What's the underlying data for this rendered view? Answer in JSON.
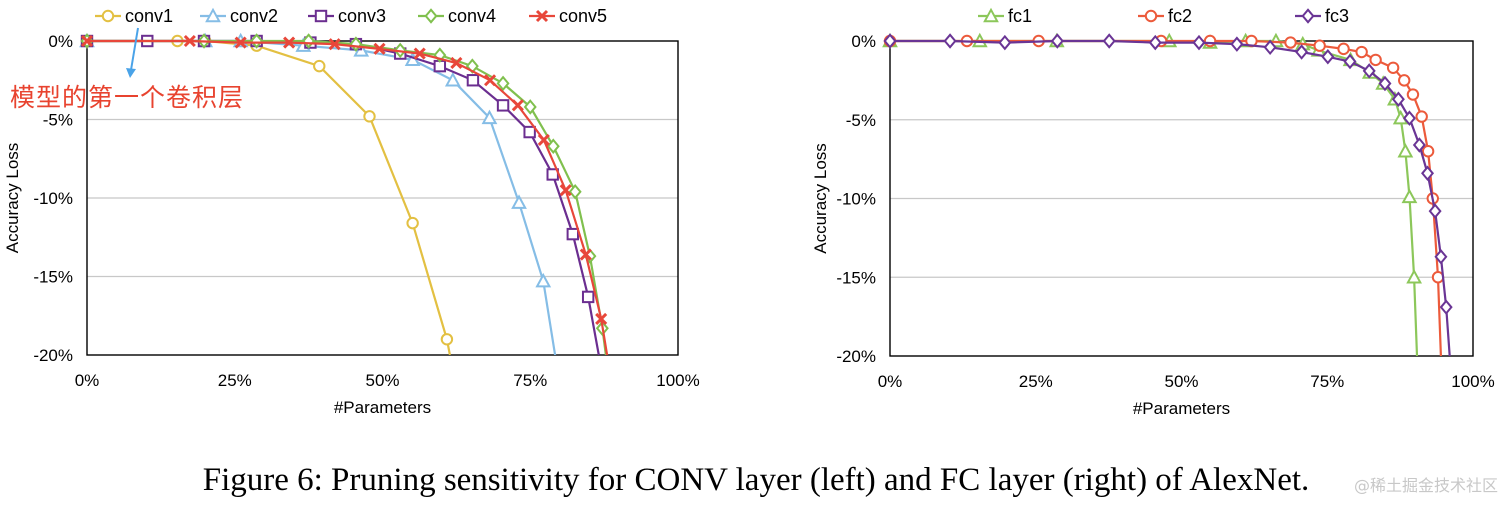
{
  "chart_data": [
    {
      "type": "line",
      "xlabel": "#Parameters",
      "ylabel": "Accuracy Loss",
      "xlim": [
        0,
        100
      ],
      "ylim": [
        -20,
        0
      ],
      "x_ticks": [
        "0%",
        "25%",
        "50%",
        "75%",
        "100%"
      ],
      "y_ticks": [
        "0%",
        "-5%",
        "-10%",
        "-15%",
        "-20%"
      ],
      "grid": "horizontal",
      "legend": "top",
      "annotation": "模型的第一个卷积层",
      "series": [
        {
          "name": "conv1",
          "color": "#e3c042",
          "marker": "circle",
          "points": [
            [
              0,
              0
            ],
            [
              15.3,
              0
            ],
            [
              20,
              0
            ],
            [
              28.7,
              -0.3
            ],
            [
              39.3,
              -1.6
            ],
            [
              47.8,
              -4.8
            ],
            [
              55.1,
              -11.6
            ],
            [
              60.9,
              -19.0
            ],
            [
              61.4,
              -20
            ]
          ]
        },
        {
          "name": "conv2",
          "color": "#85bde6",
          "marker": "triangle",
          "points": [
            [
              0,
              0
            ],
            [
              20,
              0
            ],
            [
              26,
              0
            ],
            [
              36.6,
              -0.3
            ],
            [
              46.4,
              -0.6
            ],
            [
              55.1,
              -1.2
            ],
            [
              61.9,
              -2.5
            ],
            [
              68.1,
              -4.9
            ],
            [
              73.1,
              -10.3
            ],
            [
              77.2,
              -15.3
            ],
            [
              79.2,
              -20
            ]
          ]
        },
        {
          "name": "conv3",
          "color": "#6b2e90",
          "marker": "square",
          "points": [
            [
              0,
              0
            ],
            [
              10.2,
              0
            ],
            [
              19.8,
              0
            ],
            [
              28.7,
              0
            ],
            [
              37.8,
              -0.1
            ],
            [
              45.5,
              -0.2
            ],
            [
              53,
              -0.8
            ],
            [
              59.7,
              -1.6
            ],
            [
              65.3,
              -2.5
            ],
            [
              70.4,
              -4.1
            ],
            [
              74.9,
              -5.8
            ],
            [
              78.8,
              -8.5
            ],
            [
              82.2,
              -12.3
            ],
            [
              84.8,
              -16.3
            ],
            [
              86.6,
              -20
            ]
          ]
        },
        {
          "name": "conv4",
          "color": "#80c04e",
          "marker": "diamond",
          "points": [
            [
              0,
              0
            ],
            [
              19.8,
              0
            ],
            [
              28.7,
              0
            ],
            [
              37.5,
              0
            ],
            [
              45.5,
              -0.2
            ],
            [
              53,
              -0.6
            ],
            [
              59.7,
              -0.9
            ],
            [
              65.2,
              -1.6
            ],
            [
              70.4,
              -2.7
            ],
            [
              75,
              -4.2
            ],
            [
              78.9,
              -6.7
            ],
            [
              82.6,
              -9.6
            ],
            [
              85.1,
              -13.7
            ],
            [
              87.2,
              -18.3
            ],
            [
              87.8,
              -20
            ]
          ]
        },
        {
          "name": "conv5",
          "color": "#e8473a",
          "marker": "x",
          "points": [
            [
              0,
              0
            ],
            [
              17.4,
              0
            ],
            [
              26,
              -0.1
            ],
            [
              34.2,
              -0.1
            ],
            [
              41.9,
              -0.2
            ],
            [
              49.5,
              -0.5
            ],
            [
              56.3,
              -0.8
            ],
            [
              62.5,
              -1.4
            ],
            [
              68.2,
              -2.5
            ],
            [
              72.9,
              -4.1
            ],
            [
              77.3,
              -6.3
            ],
            [
              81,
              -9.5
            ],
            [
              84.4,
              -13.6
            ],
            [
              87,
              -17.7
            ],
            [
              88,
              -20
            ]
          ]
        }
      ]
    },
    {
      "type": "line",
      "xlabel": "#Parameters",
      "ylabel": "Accuracy Loss",
      "xlim": [
        0,
        100
      ],
      "ylim": [
        -20,
        0
      ],
      "x_ticks": [
        "0%",
        "25%",
        "50%",
        "75%",
        "100%"
      ],
      "y_ticks": [
        "0%",
        "-5%",
        "-10%",
        "-15%",
        "-20%"
      ],
      "grid": "horizontal",
      "legend": "top",
      "series": [
        {
          "name": "fc1",
          "color": "#8cc75a",
          "marker": "triangle",
          "points": [
            [
              0,
              0
            ],
            [
              15.4,
              0
            ],
            [
              28.6,
              0
            ],
            [
              47.9,
              0
            ],
            [
              54.9,
              -0.1
            ],
            [
              61,
              0
            ],
            [
              66.2,
              0
            ],
            [
              70.8,
              -0.2
            ],
            [
              73.5,
              -0.6
            ],
            [
              79,
              -1.2
            ],
            [
              82.3,
              -2
            ],
            [
              84.6,
              -2.7
            ],
            [
              86.6,
              -3.7
            ],
            [
              87.6,
              -4.9
            ],
            [
              88.4,
              -7.0
            ],
            [
              89.1,
              -9.9
            ],
            [
              89.9,
              -15.0
            ],
            [
              90.4,
              -20
            ]
          ]
        },
        {
          "name": "fc2",
          "color": "#ec5a3b",
          "marker": "circle",
          "points": [
            [
              0,
              0
            ],
            [
              13.2,
              0
            ],
            [
              25.5,
              0
            ],
            [
              46.5,
              0
            ],
            [
              54.9,
              0
            ],
            [
              62,
              0
            ],
            [
              68.7,
              -0.1
            ],
            [
              73.7,
              -0.3
            ],
            [
              77.8,
              -0.5
            ],
            [
              80.9,
              -0.7
            ],
            [
              83.3,
              -1.2
            ],
            [
              86.3,
              -1.7
            ],
            [
              88.2,
              -2.5
            ],
            [
              89.7,
              -3.4
            ],
            [
              91.2,
              -4.8
            ],
            [
              92.3,
              -7.0
            ],
            [
              93.1,
              -10.0
            ],
            [
              94,
              -15
            ],
            [
              94.5,
              -20
            ]
          ]
        },
        {
          "name": "fc3",
          "color": "#6a3595",
          "marker": "diamond",
          "points": [
            [
              0,
              0
            ],
            [
              10.3,
              0
            ],
            [
              19.7,
              -0.1
            ],
            [
              28.7,
              0
            ],
            [
              37.6,
              0
            ],
            [
              45.5,
              -0.1
            ],
            [
              53,
              -0.1
            ],
            [
              59.5,
              -0.2
            ],
            [
              65.2,
              -0.4
            ],
            [
              70.6,
              -0.7
            ],
            [
              75.1,
              -1
            ],
            [
              78.9,
              -1.3
            ],
            [
              82.2,
              -1.9
            ],
            [
              84.9,
              -2.7
            ],
            [
              87.2,
              -3.7
            ],
            [
              89.1,
              -4.9
            ],
            [
              90.8,
              -6.6
            ],
            [
              92.2,
              -8.4
            ],
            [
              93.5,
              -10.8
            ],
            [
              94.5,
              -13.7
            ],
            [
              95.4,
              -16.9
            ],
            [
              96,
              -20
            ]
          ]
        }
      ]
    }
  ],
  "caption": "Figure 6: Pruning sensitivity for CONV layer (left) and FC layer (right) of AlexNet.",
  "watermark": "@稀土掘金技术社区",
  "arrow_color": "#4aa3e8"
}
